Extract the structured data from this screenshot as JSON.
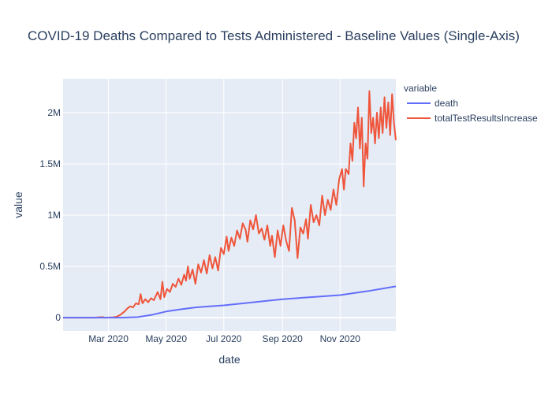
{
  "chart_data": {
    "type": "line",
    "title": "COVID-19 Deaths Compared to Tests Administered - Baseline Values (Single-Axis)",
    "xlabel": "date",
    "ylabel": "value",
    "xlim": [
      "2020-01-13",
      "2020-12-30"
    ],
    "ylim": [
      -130000,
      2330000
    ],
    "grid": true,
    "legend": {
      "title": "variable",
      "position": "right"
    },
    "x_ticks": [
      {
        "label": "Mar 2020",
        "date": "2020-03-01"
      },
      {
        "label": "May 2020",
        "date": "2020-05-01"
      },
      {
        "label": "Jul 2020",
        "date": "2020-07-01"
      },
      {
        "label": "Sep 2020",
        "date": "2020-09-01"
      },
      {
        "label": "Nov 2020",
        "date": "2020-11-01"
      }
    ],
    "y_ticks": [
      {
        "label": "0",
        "value": 0
      },
      {
        "label": "0.5M",
        "value": 500000
      },
      {
        "label": "1M",
        "value": 1000000
      },
      {
        "label": "1.5M",
        "value": 1500000
      },
      {
        "label": "2M",
        "value": 2000000
      }
    ],
    "series": [
      {
        "name": "death",
        "color": "#636efa",
        "points": [
          [
            "2020-01-13",
            0
          ],
          [
            "2020-03-01",
            0
          ],
          [
            "2020-03-15",
            100
          ],
          [
            "2020-04-01",
            5000
          ],
          [
            "2020-04-15",
            25000
          ],
          [
            "2020-05-01",
            60000
          ],
          [
            "2020-05-15",
            80000
          ],
          [
            "2020-06-01",
            100000
          ],
          [
            "2020-07-01",
            120000
          ],
          [
            "2020-08-01",
            150000
          ],
          [
            "2020-09-01",
            180000
          ],
          [
            "2020-10-01",
            200000
          ],
          [
            "2020-11-01",
            220000
          ],
          [
            "2020-12-01",
            260000
          ],
          [
            "2020-12-30",
            305000
          ]
        ]
      },
      {
        "name": "totalTestResultsIncrease",
        "color": "#ef553b",
        "points": [
          [
            "2020-01-13",
            0
          ],
          [
            "2020-02-01",
            0
          ],
          [
            "2020-02-15",
            0
          ],
          [
            "2020-02-24",
            5000
          ],
          [
            "2020-02-26",
            0
          ],
          [
            "2020-03-05",
            2000
          ],
          [
            "2020-03-10",
            10000
          ],
          [
            "2020-03-14",
            30000
          ],
          [
            "2020-03-18",
            60000
          ],
          [
            "2020-03-21",
            90000
          ],
          [
            "2020-03-24",
            110000
          ],
          [
            "2020-03-27",
            100000
          ],
          [
            "2020-03-30",
            140000
          ],
          [
            "2020-04-02",
            130000
          ],
          [
            "2020-04-04",
            230000
          ],
          [
            "2020-04-06",
            140000
          ],
          [
            "2020-04-09",
            180000
          ],
          [
            "2020-04-12",
            150000
          ],
          [
            "2020-04-15",
            190000
          ],
          [
            "2020-04-18",
            170000
          ],
          [
            "2020-04-22",
            250000
          ],
          [
            "2020-04-25",
            180000
          ],
          [
            "2020-04-27",
            350000
          ],
          [
            "2020-04-29",
            200000
          ],
          [
            "2020-05-02",
            280000
          ],
          [
            "2020-05-05",
            250000
          ],
          [
            "2020-05-08",
            330000
          ],
          [
            "2020-05-11",
            300000
          ],
          [
            "2020-05-14",
            380000
          ],
          [
            "2020-05-17",
            320000
          ],
          [
            "2020-05-20",
            420000
          ],
          [
            "2020-05-22",
            360000
          ],
          [
            "2020-05-24",
            500000
          ],
          [
            "2020-05-26",
            380000
          ],
          [
            "2020-05-29",
            470000
          ],
          [
            "2020-06-01",
            330000
          ],
          [
            "2020-06-04",
            520000
          ],
          [
            "2020-06-07",
            440000
          ],
          [
            "2020-06-10",
            560000
          ],
          [
            "2020-06-13",
            430000
          ],
          [
            "2020-06-16",
            610000
          ],
          [
            "2020-06-19",
            480000
          ],
          [
            "2020-06-22",
            590000
          ],
          [
            "2020-06-25",
            460000
          ],
          [
            "2020-06-28",
            680000
          ],
          [
            "2020-07-01",
            620000
          ],
          [
            "2020-07-04",
            790000
          ],
          [
            "2020-07-06",
            650000
          ],
          [
            "2020-07-09",
            780000
          ],
          [
            "2020-07-12",
            700000
          ],
          [
            "2020-07-15",
            850000
          ],
          [
            "2020-07-18",
            770000
          ],
          [
            "2020-07-21",
            920000
          ],
          [
            "2020-07-24",
            860000
          ],
          [
            "2020-07-26",
            740000
          ],
          [
            "2020-07-29",
            950000
          ],
          [
            "2020-08-01",
            860000
          ],
          [
            "2020-08-04",
            1000000
          ],
          [
            "2020-08-07",
            820000
          ],
          [
            "2020-08-10",
            870000
          ],
          [
            "2020-08-13",
            760000
          ],
          [
            "2020-08-16",
            900000
          ],
          [
            "2020-08-19",
            700000
          ],
          [
            "2020-08-21",
            800000
          ],
          [
            "2020-08-24",
            590000
          ],
          [
            "2020-08-27",
            850000
          ],
          [
            "2020-08-30",
            700000
          ],
          [
            "2020-09-02",
            900000
          ],
          [
            "2020-09-05",
            750000
          ],
          [
            "2020-09-08",
            650000
          ],
          [
            "2020-09-11",
            1070000
          ],
          [
            "2020-09-14",
            950000
          ],
          [
            "2020-09-17",
            580000
          ],
          [
            "2020-09-20",
            880000
          ],
          [
            "2020-09-23",
            820000
          ],
          [
            "2020-09-26",
            960000
          ],
          [
            "2020-09-28",
            770000
          ],
          [
            "2020-10-01",
            1100000
          ],
          [
            "2020-10-04",
            930000
          ],
          [
            "2020-10-07",
            1000000
          ],
          [
            "2020-10-10",
            900000
          ],
          [
            "2020-10-13",
            1190000
          ],
          [
            "2020-10-16",
            1000000
          ],
          [
            "2020-10-19",
            1150000
          ],
          [
            "2020-10-22",
            1050000
          ],
          [
            "2020-10-25",
            1250000
          ],
          [
            "2020-10-28",
            1100000
          ],
          [
            "2020-10-31",
            1350000
          ],
          [
            "2020-11-03",
            1450000
          ],
          [
            "2020-11-05",
            1250000
          ],
          [
            "2020-11-07",
            1450000
          ],
          [
            "2020-11-10",
            1400000
          ],
          [
            "2020-11-12",
            1700000
          ],
          [
            "2020-11-14",
            1530000
          ],
          [
            "2020-11-16",
            1900000
          ],
          [
            "2020-11-18",
            1750000
          ],
          [
            "2020-11-20",
            2050000
          ],
          [
            "2020-11-22",
            1650000
          ],
          [
            "2020-11-24",
            1950000
          ],
          [
            "2020-11-26",
            1280000
          ],
          [
            "2020-11-28",
            1700000
          ],
          [
            "2020-11-30",
            1550000
          ],
          [
            "2020-12-02",
            2210000
          ],
          [
            "2020-12-04",
            1800000
          ],
          [
            "2020-12-06",
            1950000
          ],
          [
            "2020-12-08",
            1700000
          ],
          [
            "2020-12-10",
            2000000
          ],
          [
            "2020-12-12",
            1750000
          ],
          [
            "2020-12-14",
            2050000
          ],
          [
            "2020-12-16",
            1800000
          ],
          [
            "2020-12-18",
            2150000
          ],
          [
            "2020-12-20",
            1850000
          ],
          [
            "2020-12-22",
            2100000
          ],
          [
            "2020-12-24",
            1780000
          ],
          [
            "2020-12-26",
            2180000
          ],
          [
            "2020-12-28",
            1900000
          ],
          [
            "2020-12-30",
            1730000
          ]
        ]
      }
    ]
  }
}
